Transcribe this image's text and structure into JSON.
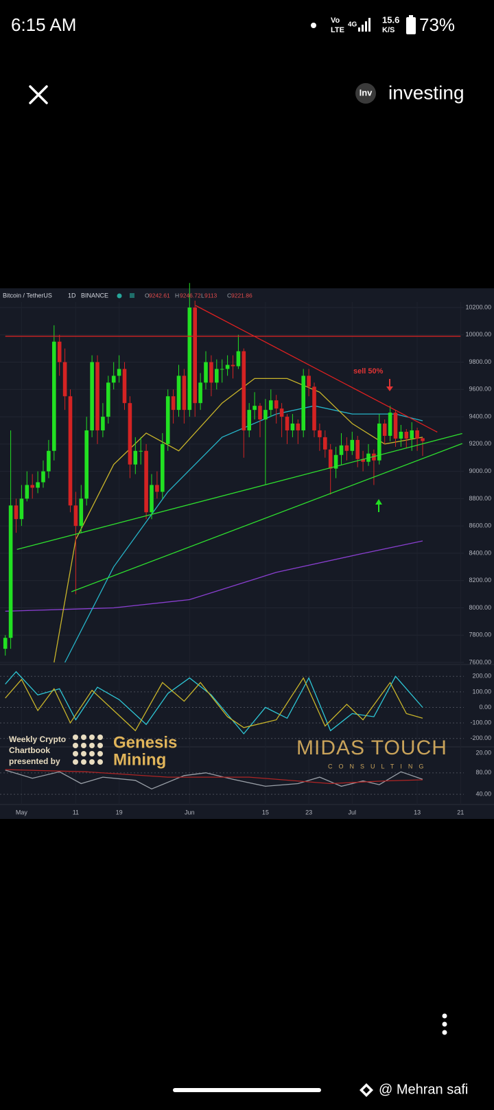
{
  "status_bar": {
    "time": "6:15 AM",
    "network_top": "Vo",
    "network_bottom": "LTE",
    "network_type": "4G",
    "speed_value": "15.6",
    "speed_unit": "K/S",
    "battery": "73%"
  },
  "header": {
    "logo": "Inv",
    "title": "investing"
  },
  "chart_data": {
    "type": "candlestick",
    "symbol": "Bitcoin / TetherUS",
    "interval": "1D",
    "exchange": "BINANCE",
    "ohlc_legend": [
      {
        "label": "O",
        "value": 9242.61
      },
      {
        "label": "H",
        "value": 9246.72
      },
      {
        "label": "L",
        "value": 9113.0
      },
      {
        "label": "C",
        "value": 9221.86
      }
    ],
    "categories": [
      null,
      null,
      null,
      "May",
      null,
      null,
      null,
      null,
      null,
      null,
      null,
      null,
      null,
      "11",
      null,
      null,
      null,
      null,
      null,
      null,
      null,
      "19",
      null,
      null,
      null,
      null,
      null,
      null,
      null,
      null,
      null,
      null,
      null,
      null,
      "Jun",
      null,
      null,
      null,
      null,
      null,
      null,
      null,
      null,
      null,
      null,
      null,
      null,
      null,
      "15",
      null,
      null,
      null,
      null,
      null,
      null,
      null,
      "23",
      null,
      null,
      null,
      null,
      null,
      null,
      null,
      "Jul",
      null,
      null,
      null,
      null,
      null,
      null,
      null,
      null,
      null,
      null,
      null,
      "13",
      null,
      null,
      null,
      null,
      null,
      null,
      null,
      "21"
    ],
    "open": [
      7700,
      7780,
      8750,
      8650,
      8800,
      8900,
      8880,
      8920,
      9000,
      9150,
      9950,
      9800,
      9550,
      8750,
      8600,
      8800,
      9300,
      9800,
      9300,
      9400,
      9650,
      9700,
      9750,
      9500,
      9050,
      9150,
      9150,
      8700,
      8900,
      8850,
      9200,
      9550,
      9450,
      9700,
      9450,
      10200,
      9500,
      9650,
      9800,
      9650,
      9750,
      9750,
      9780,
      9770,
      9880,
      9300,
      9450,
      9480,
      9380,
      9450,
      9520,
      9460,
      9400,
      9300,
      9350,
      9300,
      9700,
      9620,
      9300,
      9250,
      9160,
      9020,
      9120,
      9190,
      9150,
      9230,
      9090,
      9070,
      9130,
      9080,
      9350,
      9260,
      9430,
      9240,
      9290,
      9240,
      9300,
      9242.61,
      null,
      null,
      null,
      null,
      null,
      null,
      null
    ],
    "high": [
      7800,
      9300,
      8800,
      8900,
      9000,
      8980,
      9000,
      9080,
      9230,
      10070,
      10000,
      9900,
      9600,
      8850,
      8900,
      9400,
      9850,
      9850,
      9500,
      9700,
      9800,
      9850,
      9800,
      9550,
      9250,
      9250,
      9200,
      8980,
      9000,
      9280,
      9600,
      9600,
      9780,
      9750,
      10380,
      10250,
      9720,
      9880,
      9850,
      9820,
      9820,
      9850,
      9850,
      10000,
      9900,
      9500,
      9580,
      9500,
      9530,
      9600,
      9560,
      9500,
      9420,
      9420,
      9380,
      9750,
      9750,
      9650,
      9350,
      9300,
      9200,
      9180,
      9280,
      9250,
      9290,
      9260,
      9150,
      9200,
      9160,
      9420,
      9380,
      9480,
      9450,
      9340,
      9310,
      9360,
      9320,
      9246.72,
      null,
      null,
      null,
      null,
      null,
      null,
      null
    ],
    "low": [
      7650,
      7700,
      8550,
      8600,
      8780,
      8800,
      8840,
      8880,
      8950,
      9080,
      9700,
      9450,
      8700,
      8100,
      8550,
      8750,
      9250,
      9200,
      9250,
      9350,
      9600,
      9650,
      9450,
      8950,
      8980,
      9050,
      8650,
      8650,
      8800,
      8800,
      9150,
      9350,
      9400,
      9350,
      9400,
      9400,
      9450,
      9600,
      9550,
      9600,
      9650,
      9700,
      9680,
      9750,
      9100,
      9250,
      9380,
      9250,
      8900,
      9400,
      9350,
      9250,
      9200,
      9250,
      9200,
      9250,
      9550,
      9250,
      9150,
      9100,
      8830,
      8950,
      9050,
      9080,
      9120,
      9030,
      9000,
      9040,
      8900,
      9050,
      9200,
      9220,
      9180,
      9180,
      9170,
      9150,
      9150,
      9113,
      null,
      null,
      null,
      null,
      null,
      null,
      null
    ],
    "close": [
      7780,
      8750,
      8650,
      8800,
      8900,
      8880,
      8920,
      9000,
      9150,
      9950,
      9800,
      9550,
      8750,
      8600,
      8800,
      9300,
      9800,
      9300,
      9400,
      9650,
      9700,
      9750,
      9500,
      9050,
      9150,
      9150,
      8700,
      8900,
      8850,
      9200,
      9550,
      9450,
      9700,
      9450,
      10200,
      9500,
      9650,
      9800,
      9650,
      9750,
      9750,
      9780,
      9770,
      9880,
      9300,
      9450,
      9480,
      9380,
      9450,
      9520,
      9460,
      9400,
      9300,
      9350,
      9300,
      9700,
      9620,
      9300,
      9250,
      9160,
      9020,
      9120,
      9190,
      9150,
      9230,
      9090,
      9070,
      9130,
      9080,
      9350,
      9260,
      9430,
      9240,
      9290,
      9240,
      9300,
      9240,
      9221.86,
      null,
      null,
      null,
      null,
      null,
      null,
      null
    ],
    "up_color": "#22e022",
    "down_color": "#d42323",
    "ylim": [
      7600,
      10200
    ],
    "yticks": [
      {
        "value": 7600,
        "label": "7600.00"
      },
      {
        "value": 7800,
        "label": "7800.00"
      },
      {
        "value": 8000,
        "label": "8000.00"
      },
      {
        "value": 8200,
        "label": "8200.00"
      },
      {
        "value": 8400,
        "label": "8400.00"
      },
      {
        "value": 8600,
        "label": "8600.00"
      },
      {
        "value": 8800,
        "label": "8800.00"
      },
      {
        "value": 9000,
        "label": "9000.00"
      },
      {
        "value": 9200,
        "label": "9200.00"
      },
      {
        "value": 9400,
        "label": "9400.00"
      },
      {
        "value": 9600,
        "label": "9600.00"
      },
      {
        "value": 9800,
        "label": "9800.00"
      },
      {
        "value": 10000,
        "label": "10000.00"
      },
      {
        "value": 10200,
        "label": "10200.00"
      }
    ],
    "grid": true,
    "overlays": [
      {
        "color": "#d42323",
        "points": [
          [
            0,
            9990
          ],
          [
            84,
            9990
          ]
        ]
      },
      {
        "color": "#e02020",
        "points": [
          [
            35.1,
            10215
          ],
          [
            79.7,
            9287
          ]
        ]
      },
      {
        "color": "#2ee02e",
        "points": [
          [
            2.15,
            8428
          ],
          [
            84.3,
            9277
          ]
        ]
      },
      {
        "color": "#2ee02e",
        "points": [
          [
            12.2,
            8118
          ],
          [
            84.3,
            9204
          ]
        ]
      },
      {
        "color": "#8a3fd1",
        "points": [
          [
            0,
            7975
          ],
          [
            20,
            8000
          ],
          [
            34,
            8060
          ],
          [
            50,
            8260
          ],
          [
            65,
            8390
          ],
          [
            77,
            8490
          ]
        ]
      },
      {
        "color": "#26b5c9",
        "points": [
          [
            11,
            7600
          ],
          [
            20,
            8300
          ],
          [
            30,
            8850
          ],
          [
            40,
            9250
          ],
          [
            50,
            9420
          ],
          [
            57,
            9480
          ],
          [
            64,
            9420
          ],
          [
            72,
            9420
          ],
          [
            77,
            9370
          ]
        ]
      },
      {
        "color": "#c9b52a",
        "points": [
          [
            9,
            7600
          ],
          [
            13,
            8500
          ],
          [
            20,
            9050
          ],
          [
            26,
            9280
          ],
          [
            32,
            9150
          ],
          [
            40,
            9500
          ],
          [
            46,
            9680
          ],
          [
            52,
            9680
          ],
          [
            58,
            9580
          ],
          [
            64,
            9350
          ],
          [
            70,
            9200
          ],
          [
            77,
            9250
          ]
        ]
      }
    ],
    "annotation": "sell 50%",
    "cci": {
      "ylim": [
        -250,
        250
      ],
      "yticks": [
        {
          "value": 200,
          "label": "200.00"
        },
        {
          "value": 100,
          "label": "100.00"
        },
        {
          "value": 0,
          "label": "0.00"
        },
        {
          "value": -100,
          "label": "-100.00"
        },
        {
          "value": -200,
          "label": "-200.00"
        }
      ],
      "lines": [
        {
          "color": "#2ec7d6",
          "points": [
            [
              0,
              150
            ],
            [
              2,
              230
            ],
            [
              6,
              80
            ],
            [
              10,
              120
            ],
            [
              13,
              -80
            ],
            [
              17,
              130
            ],
            [
              21,
              50
            ],
            [
              26,
              -110
            ],
            [
              30,
              90
            ],
            [
              34,
              190
            ],
            [
              38,
              80
            ],
            [
              44,
              -170
            ],
            [
              48,
              0
            ],
            [
              52,
              -70
            ],
            [
              56,
              190
            ],
            [
              60,
              -150
            ],
            [
              64,
              -40
            ],
            [
              68,
              -60
            ],
            [
              72,
              200
            ],
            [
              77,
              0
            ]
          ]
        },
        {
          "color": "#c9b52a",
          "points": [
            [
              0,
              60
            ],
            [
              3,
              180
            ],
            [
              6,
              -20
            ],
            [
              9,
              120
            ],
            [
              12,
              -100
            ],
            [
              16,
              110
            ],
            [
              20,
              -20
            ],
            [
              24,
              -150
            ],
            [
              29,
              160
            ],
            [
              33,
              40
            ],
            [
              36,
              160
            ],
            [
              41,
              -60
            ],
            [
              44,
              -130
            ],
            [
              50,
              -80
            ],
            [
              55,
              190
            ],
            [
              59,
              -120
            ],
            [
              63,
              20
            ],
            [
              66,
              -80
            ],
            [
              71,
              160
            ],
            [
              74,
              -40
            ],
            [
              77,
              -70
            ]
          ]
        }
      ]
    },
    "rsi": {
      "ylim": [
        30,
        90
      ],
      "top_label": "20.00",
      "yticks": [
        {
          "value": 80,
          "label": "80.00"
        },
        {
          "value": 40,
          "label": "40.00"
        }
      ],
      "lines": [
        {
          "color": "#9aa0a8",
          "points": [
            [
              0,
              85
            ],
            [
              5,
              70
            ],
            [
              10,
              82
            ],
            [
              14,
              60
            ],
            [
              18,
              72
            ],
            [
              24,
              66
            ],
            [
              27,
              50
            ],
            [
              33,
              75
            ],
            [
              37,
              80
            ],
            [
              42,
              68
            ],
            [
              48,
              55
            ],
            [
              54,
              60
            ],
            [
              58,
              72
            ],
            [
              62,
              55
            ],
            [
              66,
              65
            ],
            [
              69,
              58
            ],
            [
              73,
              82
            ],
            [
              77,
              68
            ]
          ]
        },
        {
          "color": "#b02525",
          "points": [
            [
              0,
              86
            ],
            [
              15,
              82
            ],
            [
              30,
              72
            ],
            [
              45,
              72
            ],
            [
              60,
              60
            ],
            [
              70,
              65
            ],
            [
              77,
              67
            ]
          ]
        }
      ]
    }
  },
  "watermark": {
    "line1": "Weekly Crypto",
    "line2": "Chartbook",
    "line3": "presented by",
    "brand1": "Genesis",
    "brand2": "Mining",
    "brand3": "MIDAS TOUCH",
    "brand3_sub": "CONSULTING"
  },
  "footer": {
    "credit": "@ Mehran safi"
  }
}
